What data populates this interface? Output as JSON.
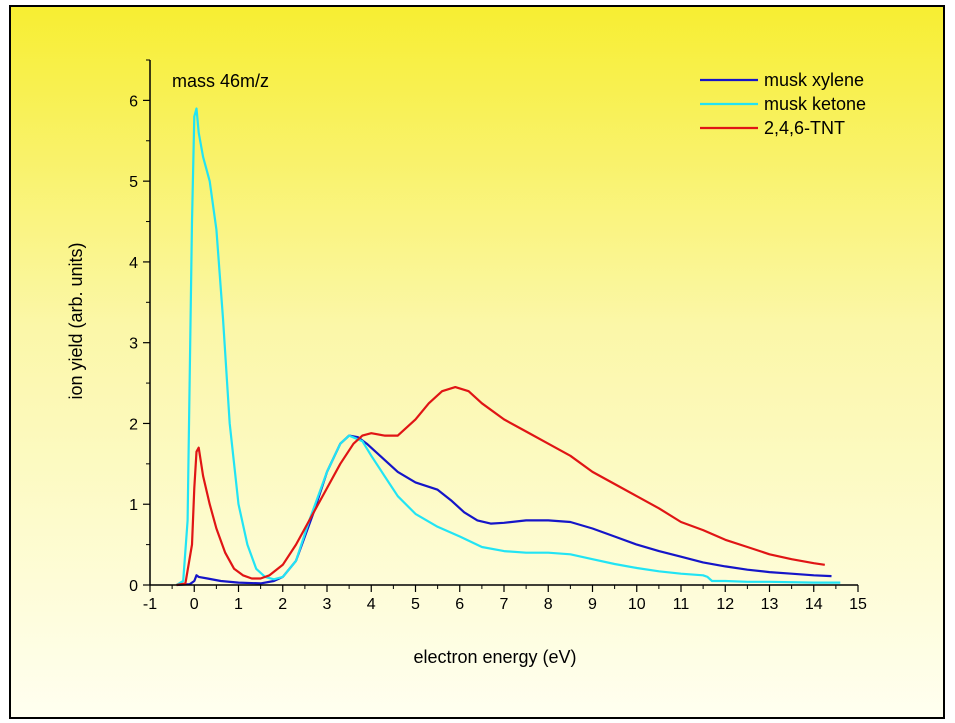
{
  "chart_data": {
    "type": "line",
    "annotation": "mass 46m/z",
    "xlabel": "electron energy (eV)",
    "ylabel": "ion yield (arb. units)",
    "xlim": [
      -1,
      15
    ],
    "ylim": [
      0,
      6.5
    ],
    "xticks": [
      -1,
      0,
      1,
      2,
      3,
      4,
      5,
      6,
      7,
      8,
      9,
      10,
      11,
      12,
      13,
      14,
      15
    ],
    "yticks": [
      0,
      1,
      2,
      3,
      4,
      5,
      6
    ],
    "legend_position": "top-right",
    "series": [
      {
        "name": "musk xylene",
        "color": "#1515c8",
        "x": [
          -0.4,
          -0.1,
          0.0,
          0.05,
          0.1,
          0.3,
          0.6,
          1.0,
          1.5,
          1.8,
          2.0,
          2.3,
          2.7,
          3.0,
          3.3,
          3.5,
          3.7,
          3.9,
          4.2,
          4.6,
          5.0,
          5.5,
          5.8,
          6.1,
          6.4,
          6.7,
          7.0,
          7.5,
          8.0,
          8.5,
          9.0,
          9.5,
          10.0,
          10.5,
          11.0,
          11.5,
          12.0,
          12.5,
          13.0,
          13.5,
          14.0,
          14.4
        ],
        "y": [
          0.0,
          0.01,
          0.05,
          0.12,
          0.1,
          0.08,
          0.05,
          0.03,
          0.02,
          0.05,
          0.1,
          0.3,
          0.9,
          1.4,
          1.75,
          1.85,
          1.83,
          1.75,
          1.6,
          1.4,
          1.27,
          1.18,
          1.05,
          0.9,
          0.8,
          0.76,
          0.77,
          0.8,
          0.8,
          0.78,
          0.7,
          0.6,
          0.5,
          0.42,
          0.35,
          0.28,
          0.23,
          0.19,
          0.16,
          0.14,
          0.12,
          0.11
        ]
      },
      {
        "name": "musk ketone",
        "color": "#22e4f4",
        "x": [
          -0.4,
          -0.25,
          -0.15,
          -0.05,
          0.0,
          0.05,
          0.1,
          0.2,
          0.35,
          0.5,
          0.65,
          0.8,
          1.0,
          1.2,
          1.4,
          1.6,
          1.8,
          2.0,
          2.3,
          2.6,
          3.0,
          3.3,
          3.5,
          3.8,
          4.0,
          4.3,
          4.6,
          5.0,
          5.5,
          6.0,
          6.5,
          7.0,
          7.5,
          8.0,
          8.5,
          9.0,
          9.5,
          10.0,
          10.5,
          11.0,
          11.5,
          11.6,
          11.7,
          12.0,
          12.5,
          13.0,
          14.0,
          14.6
        ],
        "y": [
          0.0,
          0.05,
          0.8,
          4.5,
          5.8,
          5.9,
          5.6,
          5.3,
          5.0,
          4.4,
          3.3,
          2.0,
          1.0,
          0.5,
          0.2,
          0.1,
          0.07,
          0.1,
          0.3,
          0.8,
          1.4,
          1.75,
          1.85,
          1.78,
          1.6,
          1.35,
          1.1,
          0.88,
          0.72,
          0.6,
          0.47,
          0.42,
          0.4,
          0.4,
          0.38,
          0.32,
          0.26,
          0.21,
          0.17,
          0.14,
          0.12,
          0.1,
          0.05,
          0.05,
          0.04,
          0.04,
          0.03,
          0.03
        ]
      },
      {
        "name": "2,4,6-TNT",
        "color": "#e01515",
        "x": [
          -0.4,
          -0.2,
          -0.05,
          0.0,
          0.05,
          0.1,
          0.2,
          0.35,
          0.5,
          0.7,
          0.9,
          1.1,
          1.3,
          1.5,
          1.7,
          2.0,
          2.3,
          2.6,
          3.0,
          3.3,
          3.6,
          3.8,
          4.0,
          4.3,
          4.6,
          5.0,
          5.3,
          5.6,
          5.9,
          6.2,
          6.5,
          7.0,
          7.5,
          8.0,
          8.5,
          9.0,
          9.5,
          10.0,
          10.5,
          11.0,
          11.5,
          12.0,
          12.5,
          13.0,
          13.5,
          14.0,
          14.25
        ],
        "y": [
          0.0,
          0.02,
          0.5,
          1.2,
          1.65,
          1.7,
          1.35,
          1.0,
          0.7,
          0.4,
          0.2,
          0.12,
          0.08,
          0.08,
          0.12,
          0.25,
          0.5,
          0.8,
          1.2,
          1.5,
          1.75,
          1.85,
          1.88,
          1.85,
          1.85,
          2.05,
          2.25,
          2.4,
          2.45,
          2.4,
          2.25,
          2.05,
          1.9,
          1.75,
          1.6,
          1.4,
          1.25,
          1.1,
          0.95,
          0.78,
          0.68,
          0.56,
          0.47,
          0.38,
          0.32,
          0.27,
          0.25
        ]
      }
    ]
  }
}
